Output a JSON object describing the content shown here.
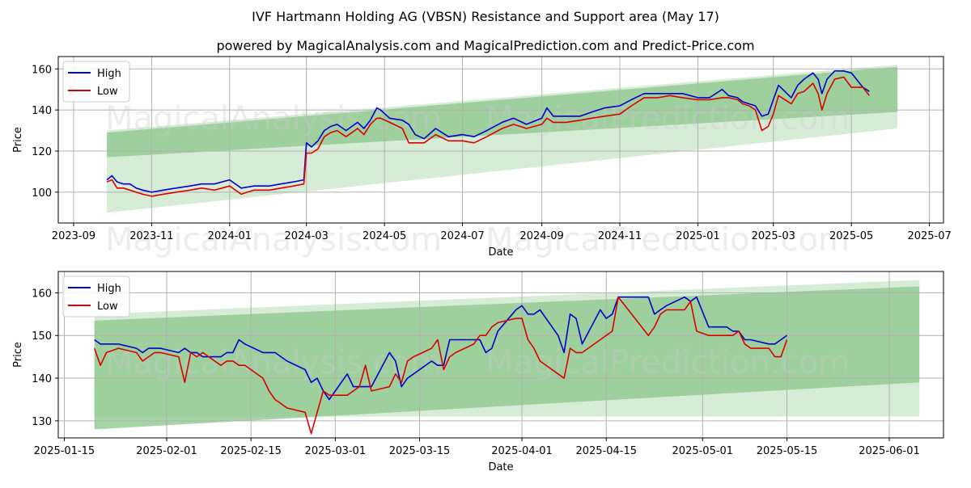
{
  "page": {
    "title": "IVF Hartmann Holding AG (VBSN) Resistance and Support area (May 17)",
    "subtitle": "powered by MagicalAnalysis.com and MagicalPrediction.com and Predict-Price.com"
  },
  "watermarks": [
    "MagicalAnalysis.com",
    "MagicalPrediction.com"
  ],
  "colors": {
    "high": "#0000cc",
    "low": "#dd0000",
    "band_inner": "#8ec98e",
    "band_outer": "#c9e6c9",
    "grid": "#b0b0b0"
  },
  "chart_data": [
    {
      "type": "line",
      "xlabel": "Date",
      "ylabel": "Price",
      "x_ticks": [
        "2023-09",
        "2023-11",
        "2024-01",
        "2024-03",
        "2024-05",
        "2024-07",
        "2024-09",
        "2024-11",
        "2025-01",
        "2025-03",
        "2025-05",
        "2025-07"
      ],
      "y_ticks": [
        100,
        120,
        140,
        160
      ],
      "xlim": [
        "2023-08-20",
        "2025-07-12"
      ],
      "ylim": [
        85,
        166
      ],
      "grid": true,
      "legend": "top-left",
      "legend_entries": [
        "High",
        "Low"
      ],
      "bands": [
        {
          "x": [
            "2023-09-27",
            "2025-06-06"
          ],
          "lower": [
            90,
            131
          ],
          "upper": [
            130,
            162
          ]
        },
        {
          "x": [
            "2023-09-27",
            "2025-06-06"
          ],
          "lower": [
            117,
            139
          ],
          "upper": [
            129,
            161
          ]
        }
      ],
      "series": [
        {
          "name": "High",
          "x": [
            "2023-09-27",
            "2023-10-01",
            "2023-10-05",
            "2023-10-10",
            "2023-10-15",
            "2023-10-20",
            "2023-10-25",
            "2023-11-01",
            "2023-11-10",
            "2023-11-20",
            "2023-12-01",
            "2023-12-10",
            "2023-12-20",
            "2024-01-01",
            "2024-01-10",
            "2024-01-20",
            "2024-02-01",
            "2024-02-10",
            "2024-02-20",
            "2024-02-28",
            "2024-03-01",
            "2024-03-05",
            "2024-03-10",
            "2024-03-15",
            "2024-03-20",
            "2024-03-25",
            "2024-04-01",
            "2024-04-10",
            "2024-04-15",
            "2024-04-20",
            "2024-04-25",
            "2024-04-28",
            "2024-05-05",
            "2024-05-15",
            "2024-05-20",
            "2024-05-25",
            "2024-06-01",
            "2024-06-10",
            "2024-06-20",
            "2024-07-01",
            "2024-07-10",
            "2024-07-20",
            "2024-08-01",
            "2024-08-10",
            "2024-08-20",
            "2024-09-01",
            "2024-09-05",
            "2024-09-10",
            "2024-09-20",
            "2024-10-01",
            "2024-10-10",
            "2024-10-20",
            "2024-11-01",
            "2024-11-10",
            "2024-11-20",
            "2024-12-01",
            "2024-12-10",
            "2024-12-20",
            "2025-01-01",
            "2025-01-10",
            "2025-01-20",
            "2025-01-25",
            "2025-02-01",
            "2025-02-05",
            "2025-02-10",
            "2025-02-15",
            "2025-02-20",
            "2025-02-25",
            "2025-03-01",
            "2025-03-05",
            "2025-03-10",
            "2025-03-15",
            "2025-03-20",
            "2025-03-25",
            "2025-04-01",
            "2025-04-05",
            "2025-04-08",
            "2025-04-12",
            "2025-04-18",
            "2025-04-25",
            "2025-05-01",
            "2025-05-10",
            "2025-05-15"
          ],
          "y": [
            106,
            108,
            105,
            104,
            104,
            102,
            101,
            100,
            101,
            102,
            103,
            104,
            104,
            106,
            102,
            103,
            103,
            104,
            105,
            106,
            124,
            122,
            125,
            130,
            132,
            133,
            130,
            134,
            131,
            135,
            141,
            140,
            136,
            135,
            133,
            128,
            126,
            131,
            127,
            128,
            127,
            130,
            134,
            136,
            133,
            136,
            141,
            137,
            137,
            137,
            139,
            141,
            142,
            145,
            148,
            148,
            148,
            148,
            146,
            146,
            150,
            147,
            146,
            144,
            143,
            142,
            137,
            138,
            145,
            152,
            149,
            146,
            152,
            155,
            158,
            155,
            148,
            155,
            159,
            159,
            158,
            151,
            149
          ]
        },
        {
          "name": "Low",
          "x": [
            "2023-09-27",
            "2023-10-01",
            "2023-10-05",
            "2023-10-10",
            "2023-10-15",
            "2023-10-20",
            "2023-10-25",
            "2023-11-01",
            "2023-11-10",
            "2023-11-20",
            "2023-12-01",
            "2023-12-10",
            "2023-12-20",
            "2024-01-01",
            "2024-01-10",
            "2024-01-20",
            "2024-02-01",
            "2024-02-10",
            "2024-02-20",
            "2024-02-28",
            "2024-03-01",
            "2024-03-05",
            "2024-03-10",
            "2024-03-15",
            "2024-03-20",
            "2024-03-25",
            "2024-04-01",
            "2024-04-10",
            "2024-04-15",
            "2024-04-20",
            "2024-04-25",
            "2024-04-28",
            "2024-05-05",
            "2024-05-15",
            "2024-05-20",
            "2024-05-25",
            "2024-06-01",
            "2024-06-10",
            "2024-06-20",
            "2024-07-01",
            "2024-07-10",
            "2024-07-20",
            "2024-08-01",
            "2024-08-10",
            "2024-08-20",
            "2024-09-01",
            "2024-09-05",
            "2024-09-10",
            "2024-09-20",
            "2024-10-01",
            "2024-10-10",
            "2024-10-20",
            "2024-11-01",
            "2024-11-10",
            "2024-11-20",
            "2024-12-01",
            "2024-12-10",
            "2024-12-20",
            "2025-01-01",
            "2025-01-10",
            "2025-01-20",
            "2025-01-25",
            "2025-02-01",
            "2025-02-05",
            "2025-02-10",
            "2025-02-15",
            "2025-02-20",
            "2025-02-25",
            "2025-03-01",
            "2025-03-05",
            "2025-03-10",
            "2025-03-15",
            "2025-03-20",
            "2025-03-25",
            "2025-04-01",
            "2025-04-05",
            "2025-04-08",
            "2025-04-12",
            "2025-04-18",
            "2025-04-25",
            "2025-05-01",
            "2025-05-10",
            "2025-05-15"
          ],
          "y": [
            105,
            106,
            102,
            102,
            101,
            100,
            99,
            98,
            99,
            100,
            101,
            102,
            101,
            103,
            99,
            101,
            101,
            102,
            103,
            104,
            119,
            119,
            121,
            127,
            129,
            130,
            127,
            131,
            128,
            133,
            136,
            136,
            134,
            131,
            124,
            124,
            124,
            128,
            125,
            125,
            124,
            127,
            131,
            133,
            131,
            133,
            136,
            134,
            134,
            135,
            136,
            137,
            138,
            142,
            146,
            146,
            147,
            146,
            145,
            145,
            146,
            146,
            145,
            143,
            142,
            140,
            130,
            132,
            138,
            147,
            145,
            143,
            148,
            149,
            153,
            148,
            140,
            148,
            155,
            156,
            151,
            151,
            147
          ]
        }
      ]
    },
    {
      "type": "line",
      "xlabel": "Date",
      "ylabel": "Price",
      "x_ticks": [
        "2025-01-15",
        "2025-02-01",
        "2025-02-15",
        "2025-03-01",
        "2025-03-15",
        "2025-04-01",
        "2025-04-15",
        "2025-05-01",
        "2025-05-15",
        "2025-06-01"
      ],
      "y_ticks": [
        130,
        140,
        150,
        160
      ],
      "xlim": [
        "2025-01-14",
        "2025-06-10"
      ],
      "ylim": [
        126,
        165
      ],
      "grid": true,
      "legend": "top-left",
      "legend_entries": [
        "High",
        "Low"
      ],
      "bands": [
        {
          "x": [
            "2025-01-20",
            "2025-06-06"
          ],
          "lower": [
            131,
            131
          ],
          "upper": [
            155,
            163
          ]
        },
        {
          "x": [
            "2025-01-20",
            "2025-06-06"
          ],
          "lower": [
            128,
            139
          ],
          "upper": [
            153.5,
            161.5
          ]
        }
      ],
      "series": [
        {
          "name": "High",
          "x": [
            "2025-01-20",
            "2025-01-21",
            "2025-01-22",
            "2025-01-24",
            "2025-01-27",
            "2025-01-28",
            "2025-01-29",
            "2025-01-30",
            "2025-01-31",
            "2025-02-03",
            "2025-02-04",
            "2025-02-05",
            "2025-02-06",
            "2025-02-07",
            "2025-02-10",
            "2025-02-11",
            "2025-02-12",
            "2025-02-13",
            "2025-02-14",
            "2025-02-17",
            "2025-02-18",
            "2025-02-19",
            "2025-02-20",
            "2025-02-21",
            "2025-02-24",
            "2025-02-25",
            "2025-02-26",
            "2025-02-27",
            "2025-02-28",
            "2025-03-03",
            "2025-03-04",
            "2025-03-05",
            "2025-03-06",
            "2025-03-07",
            "2025-03-10",
            "2025-03-11",
            "2025-03-12",
            "2025-03-13",
            "2025-03-14",
            "2025-03-17",
            "2025-03-18",
            "2025-03-19",
            "2025-03-20",
            "2025-03-21",
            "2025-03-24",
            "2025-03-25",
            "2025-03-26",
            "2025-03-27",
            "2025-03-28",
            "2025-03-31",
            "2025-04-01",
            "2025-04-02",
            "2025-04-03",
            "2025-04-04",
            "2025-04-07",
            "2025-04-08",
            "2025-04-09",
            "2025-04-10",
            "2025-04-11",
            "2025-04-14",
            "2025-04-15",
            "2025-04-16",
            "2025-04-17",
            "2025-04-22",
            "2025-04-23",
            "2025-04-24",
            "2025-04-25",
            "2025-04-28",
            "2025-04-29",
            "2025-04-30",
            "2025-05-02",
            "2025-05-05",
            "2025-05-06",
            "2025-05-07",
            "2025-05-08",
            "2025-05-09",
            "2025-05-12",
            "2025-05-13",
            "2025-05-14",
            "2025-05-15"
          ],
          "y": [
            149,
            148,
            148,
            148,
            147,
            146,
            147,
            147,
            147,
            146,
            147,
            146,
            146,
            145,
            145,
            146,
            146,
            149,
            148,
            146,
            146,
            146,
            145,
            144,
            142,
            139,
            140,
            137,
            135,
            141,
            138,
            138,
            138,
            138,
            146,
            144,
            138,
            140,
            141,
            144,
            143,
            143,
            149,
            149,
            149,
            149,
            146,
            147,
            151,
            156,
            157,
            155,
            155,
            156,
            150,
            146,
            155,
            154,
            148,
            156,
            154,
            155,
            159,
            159,
            155,
            156,
            157,
            159,
            158,
            159,
            152,
            152,
            151,
            151,
            149,
            149,
            148,
            148,
            149,
            150
          ]
        },
        {
          "name": "Low",
          "x": [
            "2025-01-20",
            "2025-01-21",
            "2025-01-22",
            "2025-01-24",
            "2025-01-27",
            "2025-01-28",
            "2025-01-29",
            "2025-01-30",
            "2025-01-31",
            "2025-02-03",
            "2025-02-04",
            "2025-02-05",
            "2025-02-06",
            "2025-02-07",
            "2025-02-10",
            "2025-02-11",
            "2025-02-12",
            "2025-02-13",
            "2025-02-14",
            "2025-02-17",
            "2025-02-18",
            "2025-02-19",
            "2025-02-20",
            "2025-02-21",
            "2025-02-24",
            "2025-02-25",
            "2025-02-26",
            "2025-02-27",
            "2025-02-28",
            "2025-03-03",
            "2025-03-04",
            "2025-03-05",
            "2025-03-06",
            "2025-03-07",
            "2025-03-10",
            "2025-03-11",
            "2025-03-12",
            "2025-03-13",
            "2025-03-14",
            "2025-03-17",
            "2025-03-18",
            "2025-03-19",
            "2025-03-20",
            "2025-03-21",
            "2025-03-24",
            "2025-03-25",
            "2025-03-26",
            "2025-03-27",
            "2025-03-28",
            "2025-03-31",
            "2025-04-01",
            "2025-04-02",
            "2025-04-03",
            "2025-04-04",
            "2025-04-07",
            "2025-04-08",
            "2025-04-09",
            "2025-04-10",
            "2025-04-11",
            "2025-04-14",
            "2025-04-15",
            "2025-04-16",
            "2025-04-17",
            "2025-04-22",
            "2025-04-23",
            "2025-04-24",
            "2025-04-25",
            "2025-04-28",
            "2025-04-29",
            "2025-04-30",
            "2025-05-02",
            "2025-05-05",
            "2025-05-06",
            "2025-05-07",
            "2025-05-08",
            "2025-05-09",
            "2025-05-12",
            "2025-05-13",
            "2025-05-14",
            "2025-05-15"
          ],
          "y": [
            147,
            143,
            146,
            147,
            146,
            144,
            145,
            146,
            146,
            145,
            139,
            146,
            145,
            146,
            143,
            144,
            144,
            143,
            143,
            140,
            137,
            135,
            134,
            133,
            132,
            127,
            132,
            137,
            136,
            136,
            137,
            138,
            143,
            137,
            138,
            141,
            139,
            144,
            145,
            147,
            149,
            142,
            145,
            146,
            148,
            150,
            150,
            152,
            153,
            154,
            154,
            149,
            147,
            144,
            141,
            140,
            147,
            146,
            146,
            149,
            150,
            151,
            159,
            150,
            152,
            155,
            156,
            156,
            158,
            151,
            150,
            150,
            150,
            151,
            148,
            147,
            147,
            145,
            145,
            149
          ]
        }
      ]
    }
  ]
}
